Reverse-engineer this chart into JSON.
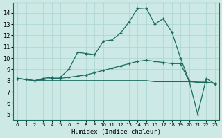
{
  "xlabel": "Humidex (Indice chaleur)",
  "bg_color": "#cce9e5",
  "line_color": "#1a6b60",
  "grid_color": "#b0d8d2",
  "xlim": [
    -0.5,
    23.5
  ],
  "ylim": [
    4.5,
    14.9
  ],
  "yticks": [
    5,
    6,
    7,
    8,
    9,
    10,
    11,
    12,
    13,
    14
  ],
  "xticks": [
    0,
    1,
    2,
    3,
    4,
    5,
    6,
    7,
    8,
    9,
    10,
    11,
    12,
    13,
    14,
    15,
    16,
    17,
    18,
    19,
    20,
    21,
    22,
    23
  ],
  "line1_x": [
    0,
    1,
    2,
    3,
    4,
    5,
    6,
    7,
    8,
    9,
    10,
    11,
    12,
    13,
    14,
    15,
    16,
    17,
    18,
    19,
    20,
    21,
    22,
    23
  ],
  "line1_y": [
    8.2,
    8.1,
    8.0,
    8.2,
    8.3,
    8.3,
    9.0,
    10.5,
    10.4,
    10.3,
    11.5,
    11.6,
    12.2,
    13.2,
    14.4,
    14.45,
    13.0,
    13.5,
    12.3,
    10.0,
    8.0,
    5.0,
    8.2,
    7.7
  ],
  "line2_x": [
    0,
    1,
    2,
    3,
    4,
    5,
    6,
    7,
    8,
    9,
    10,
    11,
    12,
    13,
    14,
    15,
    16,
    17,
    18,
    19,
    20,
    21,
    22,
    23
  ],
  "line2_y": [
    8.2,
    8.1,
    8.0,
    8.1,
    8.2,
    8.2,
    8.3,
    8.4,
    8.5,
    8.7,
    8.9,
    9.1,
    9.3,
    9.5,
    9.7,
    9.8,
    9.7,
    9.6,
    9.5,
    9.5,
    7.95,
    7.85,
    7.85,
    7.75
  ],
  "line3_x": [
    0,
    1,
    2,
    3,
    4,
    5,
    6,
    7,
    8,
    9,
    10,
    11,
    12,
    13,
    14,
    15,
    16,
    17,
    18,
    19,
    20,
    21,
    22,
    23
  ],
  "line3_y": [
    8.2,
    8.1,
    8.0,
    8.0,
    8.0,
    8.0,
    8.0,
    8.0,
    8.0,
    8.0,
    8.0,
    8.0,
    8.0,
    8.0,
    8.0,
    8.0,
    7.9,
    7.9,
    7.9,
    7.9,
    7.9,
    7.85,
    7.85,
    7.75
  ]
}
